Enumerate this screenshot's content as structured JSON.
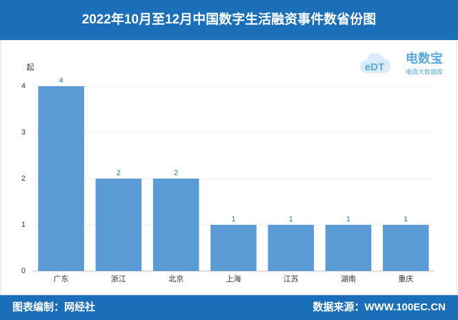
{
  "header": {
    "title": "2022年10月至12月中国数字生活融资事件数省份图"
  },
  "logo": {
    "mark": "eDT",
    "name": "电数宝",
    "tagline": "电商大数据库"
  },
  "chart_data": {
    "type": "bar",
    "y_unit": "起",
    "categories": [
      "广东",
      "浙江",
      "北京",
      "上海",
      "江苏",
      "湖南",
      "重庆"
    ],
    "values": [
      4,
      2,
      2,
      1,
      1,
      1,
      1
    ],
    "color": "#5b9bd5",
    "label_color": "#2e75b6",
    "ylim": [
      0,
      4
    ],
    "yticks": [
      0,
      1,
      2,
      3,
      4
    ],
    "grid": true
  },
  "footer": {
    "left": "图表编制：网经社",
    "right": "数据来源：WWW.100EC.CN"
  }
}
